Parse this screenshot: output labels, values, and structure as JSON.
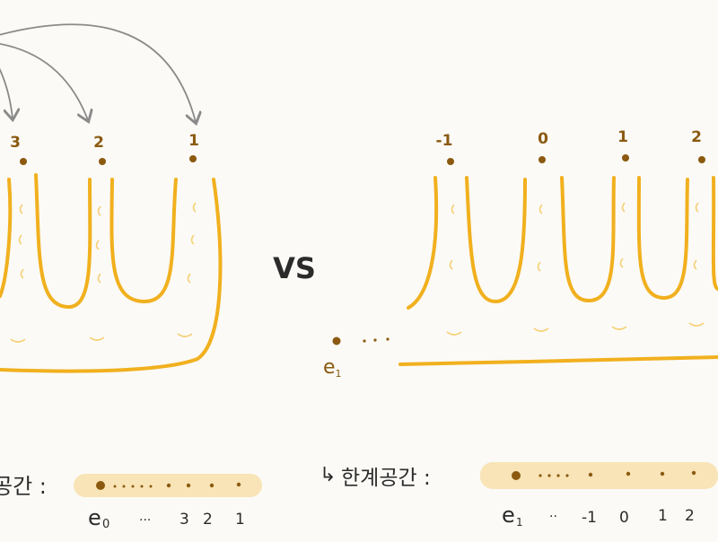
{
  "colors": {
    "orange": "#f1b01e",
    "orange_light": "#f6cf72",
    "brown": "#8b5a10",
    "arrow": "#8a8a8a",
    "ink": "#2b2b2b",
    "band": "#f7dca0"
  },
  "left": {
    "labels": [
      "3",
      "2",
      "1"
    ],
    "strip_text": "공간 :",
    "axis_labels": [
      "e",
      "0",
      "···",
      "3",
      "2",
      "1"
    ]
  },
  "vs_text": "VS",
  "right": {
    "labels": [
      "-1",
      "0",
      "1",
      "2"
    ],
    "point_label_main": "e",
    "point_label_sub": "1",
    "ellipsis": "···",
    "strip_prefix": "↳",
    "strip_text": "한계공간 :",
    "axis_labels": [
      "e",
      "1",
      "··",
      "-1",
      "0",
      "1",
      "2"
    ]
  }
}
